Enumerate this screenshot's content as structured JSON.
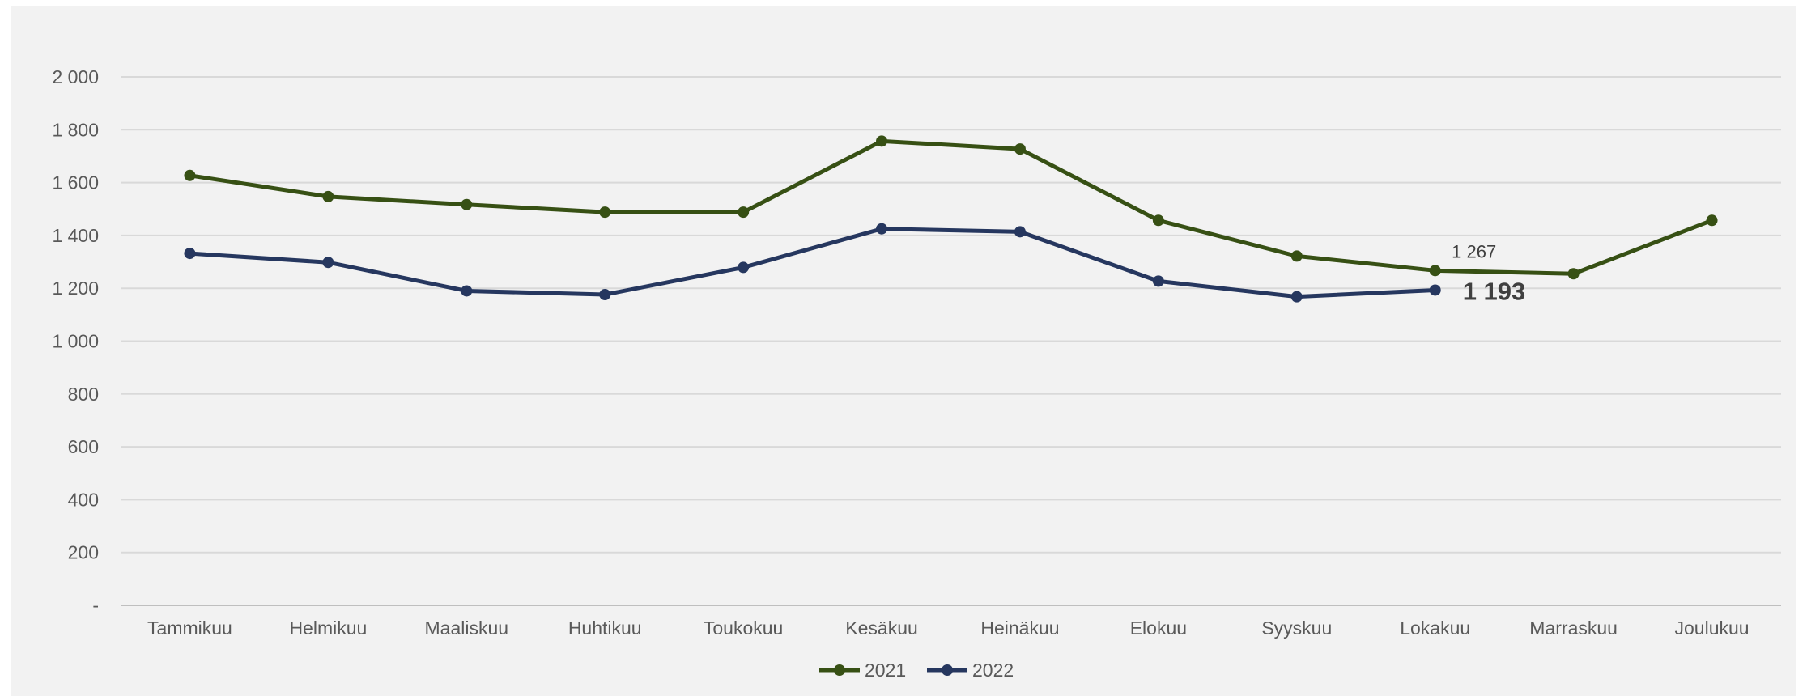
{
  "chart_data": {
    "type": "line",
    "title": "",
    "xlabel": "",
    "ylabel": "",
    "categories": [
      "Tammikuu",
      "Helmikuu",
      "Maaliskuu",
      "Huhtikuu",
      "Toukokuu",
      "Kesäkuu",
      "Heinäkuu",
      "Elokuu",
      "Syyskuu",
      "Lokakuu",
      "Marraskuu",
      "Joulukuu"
    ],
    "ylim": [
      0,
      2000
    ],
    "y_ticks": [
      {
        "value": 0,
        "label": "-"
      },
      {
        "value": 200,
        "label": "200"
      },
      {
        "value": 400,
        "label": "400"
      },
      {
        "value": 600,
        "label": "600"
      },
      {
        "value": 800,
        "label": "800"
      },
      {
        "value": 1000,
        "label": "1 000"
      },
      {
        "value": 1200,
        "label": "1 200"
      },
      {
        "value": 1400,
        "label": "1 400"
      },
      {
        "value": 1600,
        "label": "1 600"
      },
      {
        "value": 1800,
        "label": "1 800"
      },
      {
        "value": 2000,
        "label": "2 000"
      }
    ],
    "grid": true,
    "legend_position": "bottom",
    "series": [
      {
        "name": "2021",
        "color": "#375014",
        "values": [
          1627,
          1547,
          1517,
          1488,
          1488,
          1757,
          1727,
          1457,
          1322,
          1267,
          1255,
          1457
        ]
      },
      {
        "name": "2022",
        "color": "#26375f",
        "values": [
          1332,
          1298,
          1190,
          1176,
          1279,
          1425,
          1414,
          1227,
          1168,
          1193,
          null,
          null
        ]
      }
    ],
    "annotations": [
      {
        "series": 0,
        "index": 9,
        "text": "1 267",
        "style": "small"
      },
      {
        "series": 1,
        "index": 9,
        "text": "1 193",
        "style": "big"
      }
    ]
  }
}
